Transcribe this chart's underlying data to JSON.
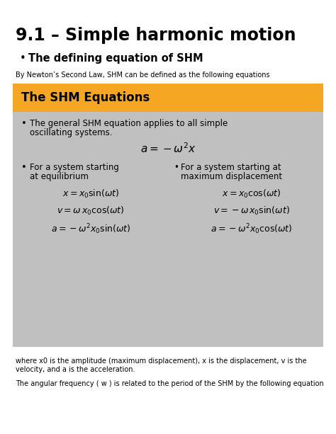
{
  "title": "9.1 – Simple harmonic motion",
  "subtitle": "The defining equation of SHM",
  "intro_text": "By Newton’s Second Law, SHM can be defined as the following equations",
  "box_header": "The SHM Equations",
  "box_header_bg": "#F5A623",
  "box_body_bg": "#C0C0C0",
  "bullet1_line1": "The general SHM equation applies to all simple",
  "bullet1_line2": "oscillating systems.",
  "eq_general": "$a=-\\omega^{2}x$",
  "bullet2_left_line1": "For a system starting",
  "bullet2_left_line2": "at equilibrium",
  "bullet2_right_line1": "For a system starting at",
  "bullet2_right_line2": "maximum displacement",
  "eq_left": [
    "$x=x_0\\sin(\\omega t)$",
    "$v=\\omega\\, x_0\\cos(\\omega t)$",
    "$a=-\\omega^{2}x_0\\sin(\\omega t)$"
  ],
  "eq_right": [
    "$x=x_0\\cos(\\omega t)$",
    "$v=-\\omega\\, x_0\\sin(\\omega t)$",
    "$a=-\\omega^{2}x_0\\cos(\\omega t)$"
  ],
  "footer1_line1": "where x0 is the amplitude (maximum displacement), x is the displacement, v is the",
  "footer1_line2": "velocity, and a is the acceleration.",
  "footer2": "The angular frequency ( w ) is related to the period of the SHM by the following equation",
  "bg_color": "#FFFFFF",
  "title_fontsize": 17,
  "subtitle_fontsize": 10.5,
  "intro_fontsize": 7,
  "header_fontsize": 12,
  "body_fontsize": 8.5,
  "eq_fontsize": 9,
  "footer_fontsize": 7
}
